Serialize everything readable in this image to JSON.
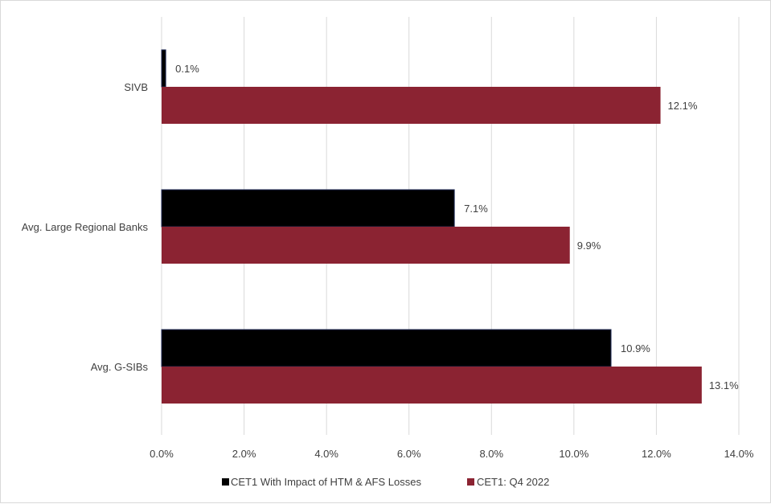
{
  "chart_data": {
    "type": "bar",
    "orientation": "horizontal",
    "categories": [
      "SIVB",
      "Avg. Large Regional Banks",
      "Avg. G-SIBs"
    ],
    "series": [
      {
        "name": "CET1 With Impact of HTM & AFS Losses",
        "values": [
          0.1,
          7.1,
          10.9
        ],
        "labels": [
          "0.1%",
          "7.1%",
          "10.9%"
        ],
        "color": "#000000"
      },
      {
        "name": "CET1: Q4 2022",
        "values": [
          12.1,
          9.9,
          13.1
        ],
        "labels": [
          "12.1%",
          "9.9%",
          "13.1%"
        ],
        "color": "#8b2332"
      }
    ],
    "xlim": [
      0,
      14
    ],
    "xticks": [
      0,
      2,
      4,
      6,
      8,
      10,
      12,
      14
    ],
    "xtick_labels": [
      "0.0%",
      "2.0%",
      "4.0%",
      "6.0%",
      "8.0%",
      "10.0%",
      "12.0%",
      "14.0%"
    ],
    "grid": "vertical",
    "legend_position": "bottom",
    "gridline_color": "#d9d9d9",
    "bar_border_color": "#1f2a56"
  }
}
